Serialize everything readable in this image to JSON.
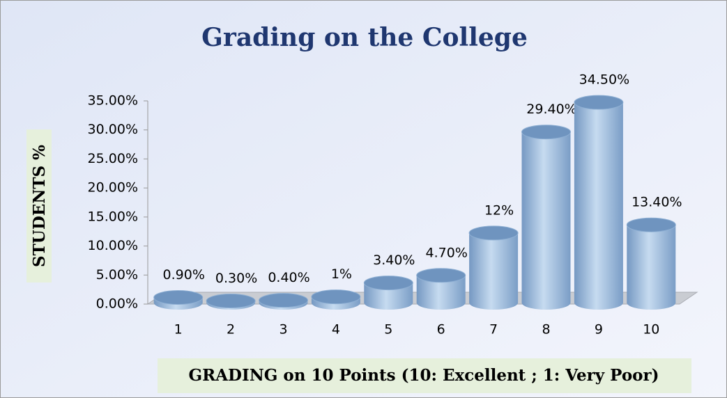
{
  "chart_data": {
    "type": "bar",
    "title": "Grading on the College",
    "x_label": "GRADING on 10 Points (10: Excellent ; 1: Very Poor)",
    "y_label": "STUDENTS %",
    "categories": [
      "1",
      "2",
      "3",
      "4",
      "5",
      "6",
      "7",
      "8",
      "9",
      "10"
    ],
    "values": [
      0.9,
      0.3,
      0.4,
      1,
      3.4,
      4.7,
      12,
      29.4,
      34.5,
      13.4
    ],
    "value_labels": [
      "0.90%",
      "0.30%",
      "0.40%",
      "1%",
      "3.40%",
      "4.70%",
      "12%",
      "29.40%",
      "34.50%",
      "13.40%"
    ],
    "color": "#8fb4da",
    "ylim": [
      0,
      35
    ],
    "yticks": [
      {
        "value": 0,
        "label": "0.00%"
      },
      {
        "value": 5,
        "label": "5.00%"
      },
      {
        "value": 10,
        "label": "10.00%"
      },
      {
        "value": 15,
        "label": "15.00%"
      },
      {
        "value": 20,
        "label": "20.00%"
      },
      {
        "value": 25,
        "label": "25.00%"
      },
      {
        "value": 30,
        "label": "30.00%"
      },
      {
        "value": 35,
        "label": "35.00%"
      }
    ]
  }
}
